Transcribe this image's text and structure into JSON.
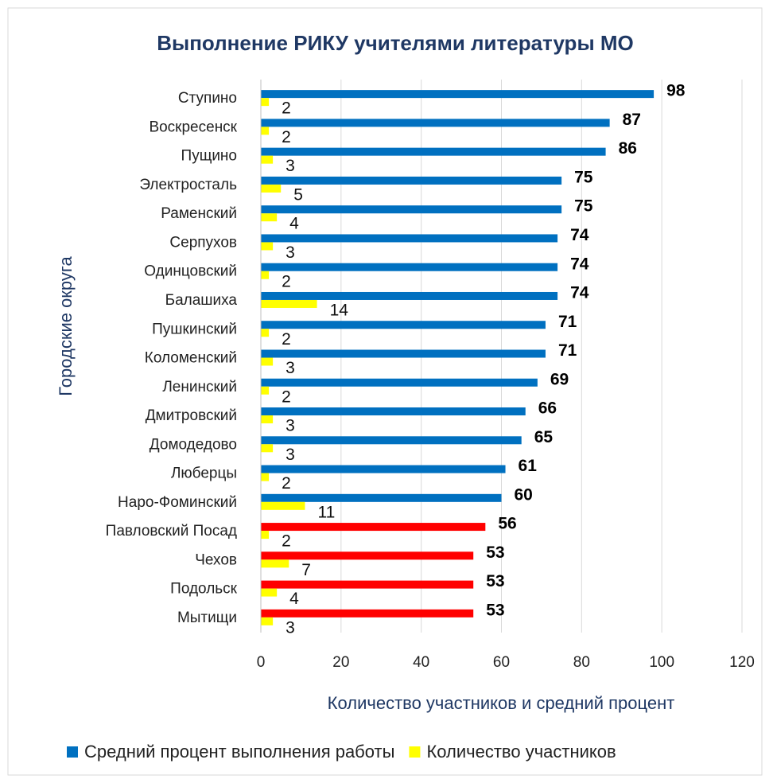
{
  "chart_data": {
    "type": "bar",
    "orientation": "horizontal",
    "title": "Выполнение РИКУ учителями литературы МО",
    "x_label": "Количество участников и средний процент",
    "y_label": "Городские округа",
    "categories": [
      "Ступино",
      "Воскресенск",
      "Пущино",
      "Электросталь",
      "Раменский",
      "Серпухов",
      "Одинцовский",
      "Балашиха",
      "Пушкинский",
      "Коломенский",
      "Ленинский",
      "Дмитровский",
      "Домодедово",
      "Люберцы",
      "Наро-Фоминский",
      "Павловский Посад",
      "Чехов",
      "Подольск",
      "Мытищи"
    ],
    "series": [
      {
        "name": "Средний процент выполнения работы",
        "color": "#0070c0",
        "colors": [
          "#0070c0",
          "#0070c0",
          "#0070c0",
          "#0070c0",
          "#0070c0",
          "#0070c0",
          "#0070c0",
          "#0070c0",
          "#0070c0",
          "#0070c0",
          "#0070c0",
          "#0070c0",
          "#0070c0",
          "#0070c0",
          "#0070c0",
          "#ff0000",
          "#ff0000",
          "#ff0000",
          "#ff0000"
        ],
        "values": [
          98,
          87,
          86,
          75,
          75,
          74,
          74,
          74,
          71,
          71,
          69,
          66,
          65,
          61,
          60,
          56,
          53,
          53,
          53
        ]
      },
      {
        "name": "Количество участников",
        "color": "#ffff00",
        "values": [
          2,
          2,
          3,
          5,
          4,
          3,
          2,
          14,
          2,
          3,
          2,
          3,
          3,
          2,
          11,
          2,
          7,
          4,
          3
        ]
      }
    ],
    "xlim": [
      0,
      120
    ],
    "xticks": [
      0,
      20,
      40,
      60,
      80,
      100,
      120
    ],
    "grid": true,
    "legend": "bottom"
  }
}
